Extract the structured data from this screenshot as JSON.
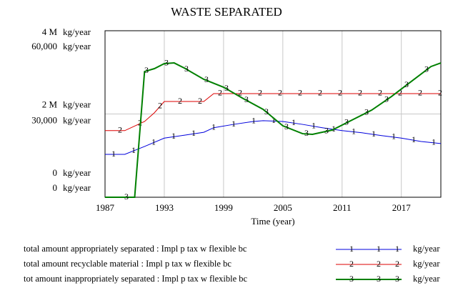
{
  "chart_data": {
    "type": "line",
    "title": "WASTE SEPARATED",
    "x_label": "Time (year)",
    "y_unit": "kg/year",
    "xlim": [
      1987,
      2021
    ],
    "xticks": [
      1987,
      1993,
      1999,
      2005,
      2011,
      2017
    ],
    "ylim": [
      0,
      4000000
    ],
    "yticks": [
      0,
      {
        "value": 2000000,
        "label": "2 M"
      },
      {
        "value": 4000000,
        "label": "4 M"
      }
    ],
    "y2lim": [
      0,
      60000
    ],
    "y2ticks": [
      0,
      {
        "value": 30000,
        "label": "30,000"
      },
      {
        "value": 60000,
        "label": "60,000"
      }
    ],
    "grid": true,
    "series": [
      {
        "name": "total amount appropriately separated : Impl p tax w flexible bc",
        "marker": "1",
        "color": "#0000dd",
        "x": [
          1987,
          1989,
          1991,
          1993,
          1995,
          1997,
          1998,
          2000,
          2002,
          2003,
          2005,
          2007,
          2009,
          2011,
          2013,
          2015,
          2017,
          2019,
          2021
        ],
        "values": [
          1030000,
          1030000,
          1220000,
          1420000,
          1490000,
          1560000,
          1670000,
          1750000,
          1820000,
          1840000,
          1820000,
          1750000,
          1670000,
          1600000,
          1550000,
          1480000,
          1420000,
          1340000,
          1290000
        ]
      },
      {
        "name": "total amount recyclable material : Impl p tax w flexible bc",
        "marker": "2",
        "color": "#dd0000",
        "x": [
          1987,
          1989,
          1991,
          1992,
          1993,
          1997,
          1998,
          2021
        ],
        "values": [
          1600000,
          1600000,
          1820000,
          2030000,
          2300000,
          2300000,
          2490000,
          2490000
        ]
      },
      {
        "name": "tot amount inappropriately separated : Impl p tax w flexible bc",
        "marker": "3",
        "color": "#008000",
        "axis": "y2",
        "x": [
          1987,
          1990,
          1991,
          1992,
          1993,
          1994,
          1995,
          1997,
          1999,
          2001,
          2003,
          2005,
          2007,
          2008,
          2010,
          2012,
          2014,
          2016,
          2018,
          2020,
          2021
        ],
        "values": [
          0,
          0,
          45300,
          46350,
          48150,
          48400,
          46600,
          42500,
          39650,
          35540,
          31670,
          25750,
          22900,
          22660,
          24200,
          27800,
          31400,
          36300,
          41700,
          47100,
          48400
        ]
      }
    ]
  }
}
